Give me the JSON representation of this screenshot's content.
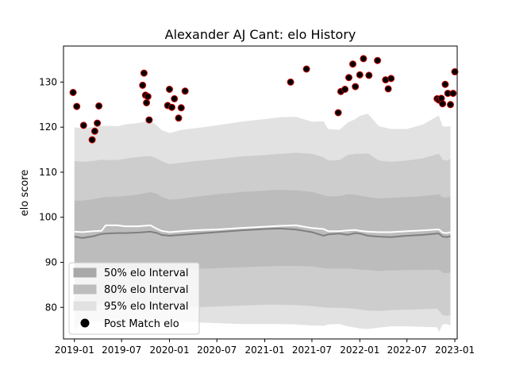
{
  "chart_data": {
    "type": "scatter",
    "title": "Alexander AJ Cant: elo History",
    "xlabel": "",
    "ylabel": "elo score",
    "xlim": [
      "2018-11-20",
      "2023-01-10"
    ],
    "ylim": [
      73,
      138
    ],
    "grid": false,
    "legend_position": "lower-left",
    "x_ticks": [
      "2019-01",
      "2019-07",
      "2020-01",
      "2020-07",
      "2021-01",
      "2021-07",
      "2022-01",
      "2022-07",
      "2023-01"
    ],
    "y_ticks": [
      80,
      90,
      100,
      110,
      120,
      130
    ],
    "legend": [
      "50% elo Interval",
      "80% elo Interval",
      "95% elo Interval",
      "Post Match elo"
    ],
    "colors": {
      "band95": "#e2e2e2",
      "band80": "#cdcdcd",
      "band50": "#bcbcbc",
      "median_line": "#7f7f7f",
      "mean_line": "#ffffff",
      "point_fill": "#000000",
      "point_edge": "#cc0000"
    },
    "bands": {
      "x": [
        "2019-01-01",
        "2019-02-01",
        "2019-03-15",
        "2019-04-15",
        "2019-05-01",
        "2019-06-15",
        "2019-07-15",
        "2019-09-01",
        "2019-10-20",
        "2019-11-15",
        "2019-12-01",
        "2020-01-01",
        "2020-02-15",
        "2020-04-01",
        "2020-07-01",
        "2020-10-01",
        "2021-01-01",
        "2021-03-01",
        "2021-05-01",
        "2021-07-01",
        "2021-08-15",
        "2021-09-01",
        "2021-10-15",
        "2021-11-15",
        "2021-12-15",
        "2022-01-01",
        "2022-02-01",
        "2022-03-15",
        "2022-05-01",
        "2022-07-01",
        "2022-09-01",
        "2022-10-25",
        "2022-11-01",
        "2022-11-15",
        "2022-12-01",
        "2022-12-15"
      ],
      "p95_upper": [
        120.0,
        119.7,
        120.1,
        120.3,
        120.3,
        120.2,
        120.6,
        120.9,
        121.4,
        120.3,
        119.4,
        118.7,
        119.4,
        119.7,
        120.4,
        121.2,
        121.8,
        122.2,
        122.3,
        121.2,
        121.3,
        119.6,
        119.4,
        121.0,
        121.8,
        122.5,
        123.0,
        120.2,
        119.6,
        119.6,
        120.6,
        122.4,
        122.5,
        120.2,
        120.1,
        120.2
      ],
      "p80_upper": [
        112.5,
        112.3,
        112.5,
        112.8,
        112.7,
        112.7,
        113.0,
        113.4,
        113.6,
        113.0,
        112.5,
        111.8,
        112.1,
        112.4,
        112.9,
        113.5,
        113.8,
        114.1,
        114.3,
        114.1,
        113.3,
        112.6,
        112.7,
        113.8,
        114.1,
        114.1,
        114.2,
        112.6,
        112.3,
        112.6,
        113.1,
        114.0,
        114.1,
        112.8,
        112.6,
        112.9
      ],
      "p50_upper": [
        103.7,
        103.7,
        104.0,
        104.4,
        104.5,
        104.6,
        104.7,
        105.0,
        105.6,
        105.2,
        104.6,
        103.9,
        104.1,
        104.5,
        105.1,
        105.6,
        105.9,
        106.1,
        106.0,
        105.6,
        104.9,
        104.6,
        104.7,
        105.1,
        105.0,
        104.8,
        104.5,
        104.2,
        104.3,
        104.5,
        104.7,
        105.0,
        105.1,
        104.4,
        104.4,
        104.6
      ],
      "p50_lower": [
        88.0,
        88.5,
        88.5,
        88.6,
        88.6,
        88.5,
        88.4,
        88.4,
        88.3,
        88.0,
        87.9,
        88.2,
        88.4,
        88.5,
        88.7,
        88.9,
        89.1,
        89.2,
        89.2,
        89.1,
        88.7,
        88.6,
        88.6,
        88.6,
        88.5,
        88.4,
        88.3,
        88.1,
        88.2,
        88.3,
        88.3,
        88.4,
        88.3,
        87.7,
        87.6,
        87.7
      ],
      "p80_lower": [
        80.5,
        80.7,
        80.6,
        80.5,
        80.4,
        80.3,
        80.3,
        80.2,
        80.0,
        79.7,
        79.5,
        79.7,
        79.9,
        80.0,
        80.2,
        80.4,
        80.6,
        80.6,
        80.5,
        80.3,
        80.0,
        79.9,
        79.9,
        79.8,
        79.7,
        79.5,
        79.3,
        79.2,
        79.4,
        79.5,
        79.6,
        79.7,
        79.3,
        78.3,
        78.1,
        78.3
      ],
      "p95_lower": [
        74.7,
        77.2,
        77.0,
        76.8,
        76.6,
        76.5,
        76.4,
        76.3,
        76.1,
        75.8,
        76.5,
        77.0,
        76.9,
        76.7,
        76.5,
        76.3,
        76.3,
        76.3,
        76.2,
        76.0,
        75.9,
        76.2,
        76.3,
        75.8,
        75.5,
        75.3,
        75.2,
        75.5,
        75.8,
        75.8,
        75.7,
        75.6,
        74.5,
        76.2,
        76.3,
        76.0
      ],
      "median": [
        95.7,
        95.4,
        95.8,
        96.3,
        96.4,
        96.5,
        96.5,
        96.6,
        96.8,
        96.5,
        96.1,
        95.9,
        96.1,
        96.3,
        96.7,
        97.1,
        97.4,
        97.5,
        97.3,
        96.7,
        95.9,
        96.2,
        96.4,
        96.1,
        96.5,
        96.4,
        95.9,
        95.7,
        95.6,
        95.9,
        96.1,
        96.4,
        96.4,
        95.7,
        95.6,
        95.8
      ],
      "mean": [
        96.8,
        96.7,
        96.9,
        97.0,
        98.2,
        98.2,
        98.0,
        98.0,
        98.2,
        97.4,
        97.0,
        96.7,
        96.9,
        97.1,
        97.3,
        97.6,
        97.9,
        98.1,
        98.2,
        97.6,
        97.4,
        96.9,
        96.9,
        97.1,
        97.2,
        97.0,
        96.8,
        96.7,
        96.7,
        96.9,
        97.1,
        97.3,
        97.3,
        96.6,
        96.5,
        96.7
      ]
    },
    "points": {
      "x": [
        "2018-12-27",
        "2019-01-10",
        "2019-02-05",
        "2019-03-10",
        "2019-03-20",
        "2019-03-30",
        "2019-04-05",
        "2019-09-20",
        "2019-09-25",
        "2019-10-01",
        "2019-10-05",
        "2019-10-10",
        "2019-10-15",
        "2019-12-25",
        "2020-01-01",
        "2020-01-10",
        "2020-01-20",
        "2020-02-05",
        "2020-02-15",
        "2020-03-01",
        "2021-04-10",
        "2021-06-10",
        "2021-10-10",
        "2021-10-20",
        "2021-11-05",
        "2021-11-20",
        "2021-12-05",
        "2021-12-15",
        "2022-01-01",
        "2022-01-15",
        "2022-02-05",
        "2022-03-10",
        "2022-04-10",
        "2022-04-20",
        "2022-05-01",
        "2022-10-25",
        "2022-11-01",
        "2022-11-10",
        "2022-11-15",
        "2022-11-25",
        "2022-12-05",
        "2022-12-15",
        "2022-12-25",
        "2023-01-01"
      ],
      "y": [
        127.7,
        124.6,
        120.4,
        117.2,
        119.1,
        120.9,
        124.7,
        129.3,
        132.0,
        127.1,
        125.4,
        126.8,
        121.6,
        124.8,
        128.4,
        124.4,
        126.3,
        122.0,
        124.3,
        128.0,
        130.0,
        132.9,
        123.2,
        127.9,
        128.4,
        131.0,
        134.0,
        129.0,
        131.6,
        135.2,
        131.5,
        134.8,
        130.5,
        128.5,
        130.8,
        126.3,
        126.0,
        126.4,
        125.2,
        129.5,
        127.5,
        125.0,
        127.5,
        132.3
      ]
    }
  }
}
